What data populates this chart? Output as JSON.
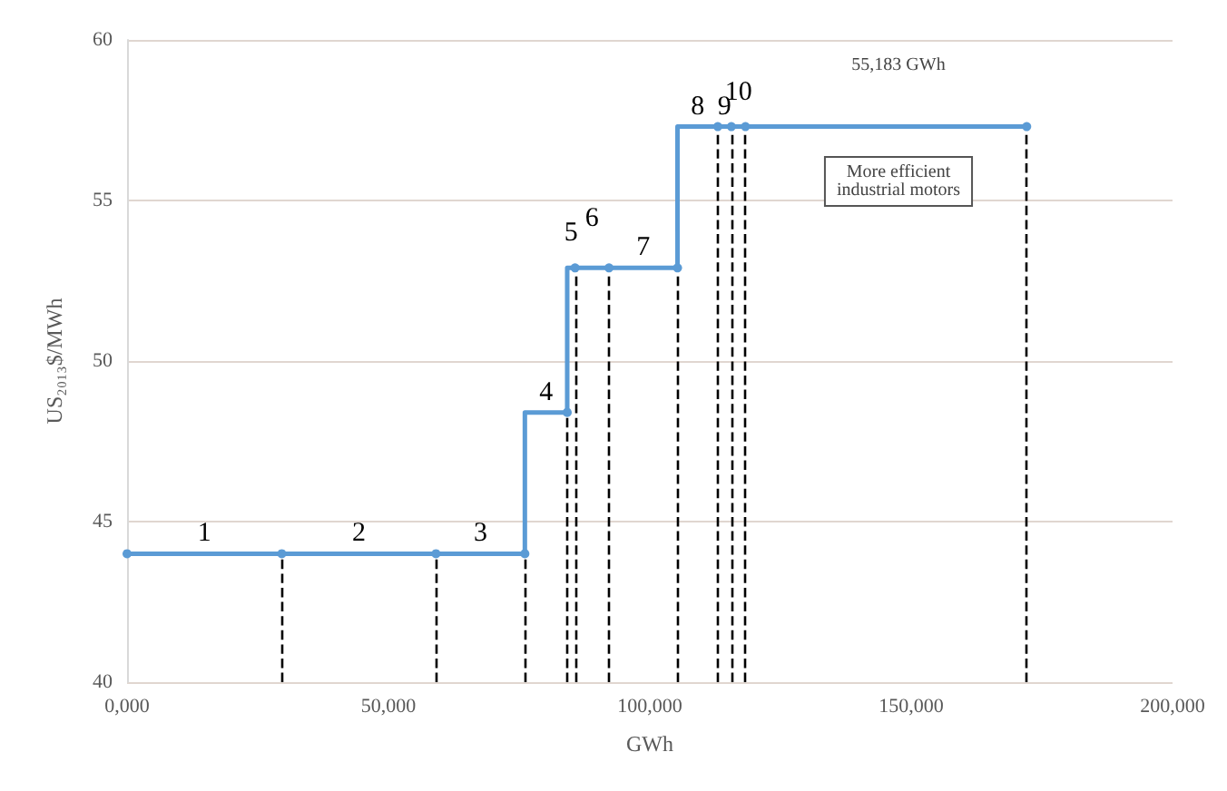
{
  "chart_data": {
    "type": "step",
    "xlabel": "GWh",
    "ylabel": "US₂₀₁₃$/MWh",
    "x": [
      0,
      29600,
      59100,
      76100,
      84200,
      85700,
      92200,
      105300,
      113000,
      115600,
      118300,
      172100
    ],
    "series": [
      {
        "color": "#5b9bd5",
        "values": [
          44,
          44,
          44,
          44,
          48.4,
          52.9,
          52.9,
          52.9,
          57.3,
          57.3,
          57.3,
          57.3
        ]
      }
    ],
    "xlim": [
      0,
      200000
    ],
    "xticks": [
      {
        "value": 0,
        "label": "0,000"
      },
      {
        "value": 50000,
        "label": "50,000"
      },
      {
        "value": 100000,
        "label": "100,000"
      },
      {
        "value": 150000,
        "label": "150,000"
      },
      {
        "value": 200000,
        "label": "200,000"
      }
    ],
    "ylim": [
      40,
      60
    ],
    "yticks": [
      40,
      45,
      50,
      55,
      60
    ],
    "grid": "y",
    "marker": "circle",
    "line_style": "solid",
    "ref_lines": [
      {
        "axis": "x",
        "value": 29600,
        "line_style": "dashed",
        "color": "#000000"
      },
      {
        "axis": "x",
        "value": 59100,
        "line_style": "dashed",
        "color": "#000000"
      },
      {
        "axis": "x",
        "value": 76100,
        "line_style": "dashed",
        "color": "#000000"
      },
      {
        "axis": "x",
        "value": 84200,
        "line_style": "dashed",
        "color": "#000000"
      },
      {
        "axis": "x",
        "value": 85700,
        "line_style": "dashed",
        "color": "#000000"
      },
      {
        "axis": "x",
        "value": 92200,
        "line_style": "dashed",
        "color": "#000000"
      },
      {
        "axis": "x",
        "value": 105300,
        "line_style": "dashed",
        "color": "#000000"
      },
      {
        "axis": "x",
        "value": 113000,
        "line_style": "dashed",
        "color": "#000000"
      },
      {
        "axis": "x",
        "value": 115600,
        "line_style": "dashed",
        "color": "#000000"
      },
      {
        "axis": "x",
        "value": 118300,
        "line_style": "dashed",
        "color": "#000000"
      },
      {
        "axis": "x",
        "value": 172100,
        "line_style": "dashed",
        "color": "#000000"
      }
    ],
    "annotations": [
      {
        "text": "1",
        "x": 29600,
        "y": 44
      },
      {
        "text": "2",
        "x": 59100,
        "y": 44
      },
      {
        "text": "3",
        "x": 76100,
        "y": 44
      },
      {
        "text": "4",
        "x": 84200,
        "y": 48.4
      },
      {
        "text": "5",
        "x": 85700,
        "y": 52.9
      },
      {
        "text": "6",
        "x": 92200,
        "y": 52.9
      },
      {
        "text": "7",
        "x": 105300,
        "y": 52.9
      },
      {
        "text": "8",
        "x": 113000,
        "y": 57.3
      },
      {
        "text": "9",
        "x": 115600,
        "y": 57.3
      },
      {
        "text": "10",
        "x": 118300,
        "y": 57.3
      },
      "55,183 GWh",
      "More efficient\nindustrial motors"
    ]
  }
}
